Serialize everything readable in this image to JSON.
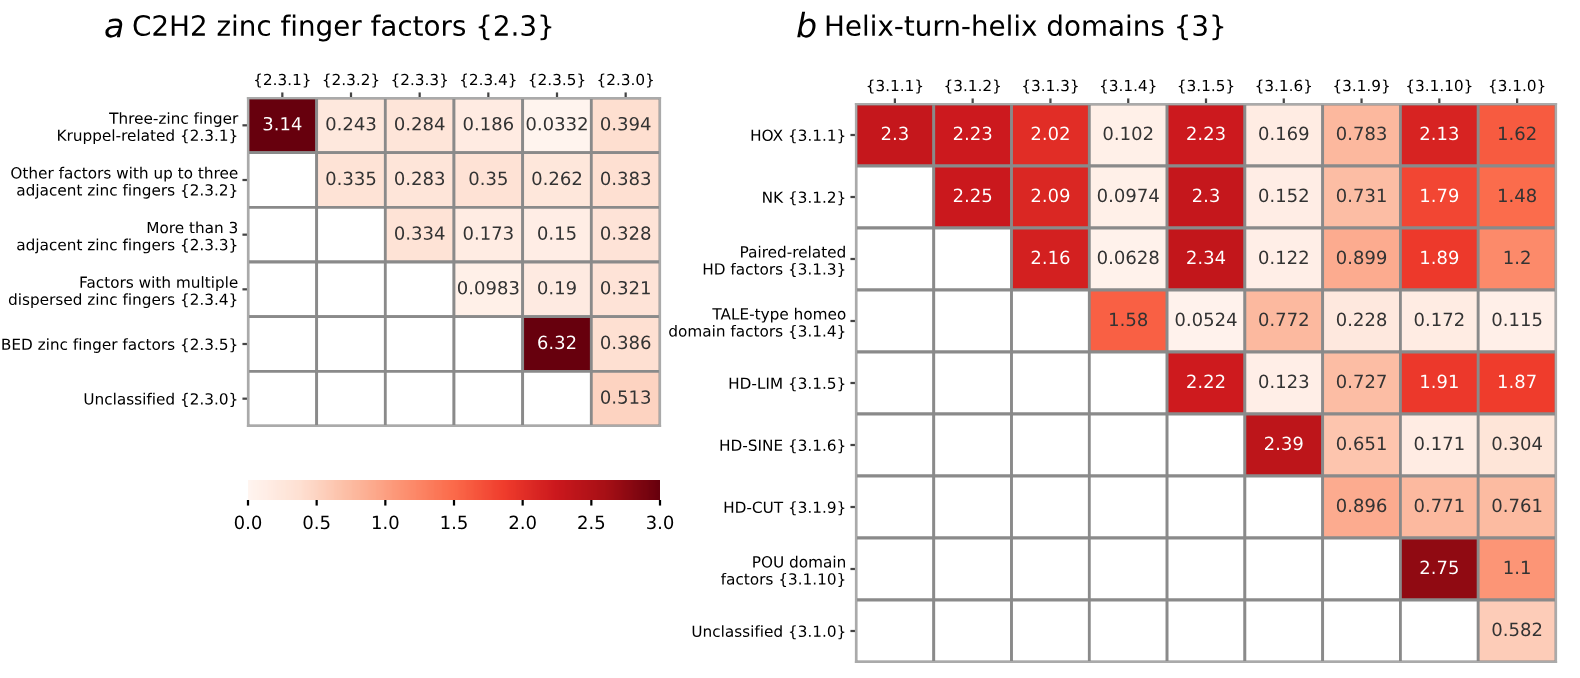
{
  "chart_data": [
    {
      "type": "heatmap",
      "title": "C2H2 zinc finger factors {2.3}",
      "annotations": [
        "a"
      ],
      "categories": [
        "{2.3.1}",
        "{2.3.2}",
        "{2.3.3}",
        "{2.3.4}",
        "{2.3.5}",
        "{2.3.0}"
      ],
      "y_categories": [
        "Three-zinc finger\nKruppel-related {2.3.1}",
        "Other factors with up to three\nadjacent zinc fingers {2.3.2}",
        "More than 3\nadjacent zinc fingers {2.3.3}",
        "Factors with multiple\ndispersed zinc fingers {2.3.4}",
        "BED zinc finger factors {2.3.5}",
        "Unclassified {2.3.0}"
      ],
      "cells": [
        [
          3.14,
          0.243,
          0.284,
          0.186,
          0.0332,
          0.394
        ],
        [
          null,
          0.335,
          0.283,
          0.35,
          0.262,
          0.383
        ],
        [
          null,
          null,
          0.334,
          0.173,
          0.15,
          0.328
        ],
        [
          null,
          null,
          null,
          0.0983,
          0.19,
          0.321
        ],
        [
          null,
          null,
          null,
          null,
          6.32,
          0.386
        ],
        [
          null,
          null,
          null,
          null,
          null,
          0.513
        ]
      ],
      "data_labels": true,
      "clim": [
        0,
        3
      ],
      "cticks": [
        {
          "value": 0,
          "label": "0.0"
        },
        0.5,
        {
          "value": 1,
          "label": "1.0"
        },
        1.5,
        {
          "value": 2,
          "label": "2.0"
        },
        2.5,
        {
          "value": 3,
          "label": "3.0"
        }
      ]
    },
    {
      "type": "heatmap",
      "title": "Helix-turn-helix domains {3}",
      "annotations": [
        "b"
      ],
      "categories": [
        "{3.1.1}",
        "{3.1.2}",
        "{3.1.3}",
        "{3.1.4}",
        "{3.1.5}",
        "{3.1.6}",
        "{3.1.9}",
        "{3.1.10}",
        "{3.1.0}"
      ],
      "y_categories": [
        "HOX {3.1.1}",
        "NK {3.1.2}",
        "Paired-related\nHD factors {3.1.3}",
        "TALE-type homeo\ndomain factors {3.1.4}",
        "HD-LIM {3.1.5}",
        "HD-SINE {3.1.6}",
        "HD-CUT {3.1.9}",
        "POU domain\nfactors {3.1.10}",
        "Unclassified {3.1.0}"
      ],
      "cells": [
        [
          2.3,
          2.23,
          2.02,
          0.102,
          2.23,
          0.169,
          0.783,
          2.13,
          1.62
        ],
        [
          null,
          2.25,
          2.09,
          0.0974,
          2.3,
          0.152,
          0.731,
          1.79,
          1.48
        ],
        [
          null,
          null,
          2.16,
          0.0628,
          2.34,
          0.122,
          0.899,
          1.89,
          1.2
        ],
        [
          null,
          null,
          null,
          1.58,
          0.0524,
          0.772,
          0.228,
          0.172,
          0.115
        ],
        [
          null,
          null,
          null,
          null,
          2.22,
          0.123,
          0.727,
          1.91,
          1.87
        ],
        [
          null,
          null,
          null,
          null,
          null,
          2.39,
          0.651,
          0.171,
          0.304
        ],
        [
          null,
          null,
          null,
          null,
          null,
          null,
          0.896,
          0.771,
          0.761
        ],
        [
          null,
          null,
          null,
          null,
          null,
          null,
          null,
          2.75,
          1.1
        ],
        [
          null,
          null,
          null,
          null,
          null,
          null,
          null,
          null,
          0.582
        ]
      ],
      "data_labels": true
    }
  ]
}
